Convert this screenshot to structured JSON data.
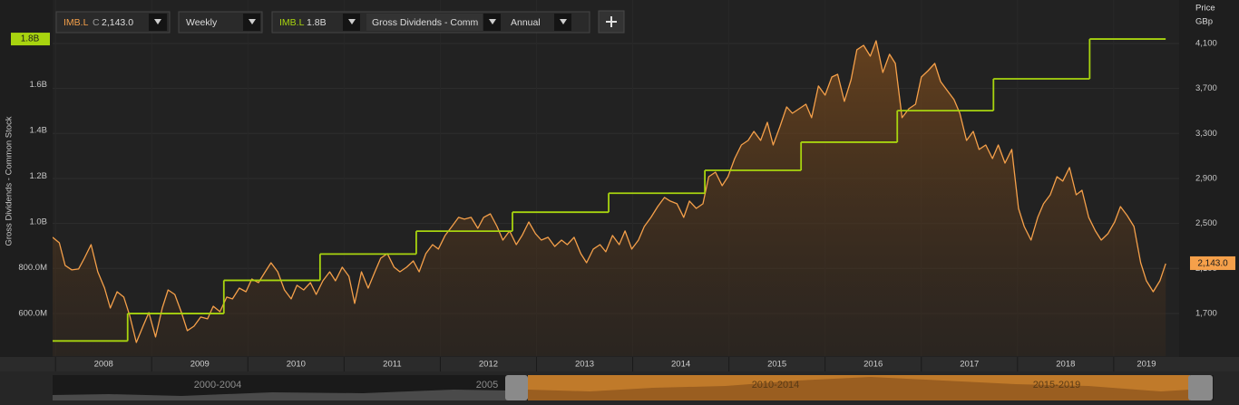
{
  "chart_data": {
    "type": "combo",
    "ylabel": "Gross Dividends - Common Stock",
    "y2label": "Price",
    "y2unit": "GBp",
    "xlim": [
      2007.97,
      2019.68
    ],
    "xticks": [
      2008,
      2009,
      2010,
      2011,
      2012,
      2013,
      2014,
      2015,
      2016,
      2017,
      2018,
      2019
    ],
    "ylim": [
      414,
      1931
    ],
    "yticks": [
      {
        "value": 600,
        "label": "600.0M"
      },
      {
        "value": 800,
        "label": "800.0M"
      },
      {
        "value": 1000,
        "label": "1.0B"
      },
      {
        "value": 1200,
        "label": "1.2B"
      },
      {
        "value": 1400,
        "label": "1.4B"
      },
      {
        "value": 1600,
        "label": "1.6B"
      }
    ],
    "y2lim": [
      1321,
      4406
    ],
    "y2ticks": [
      {
        "value": 1700,
        "label": "1,700"
      },
      {
        "value": 2100,
        "label": "2,100"
      },
      {
        "value": 2500,
        "label": "2,500"
      },
      {
        "value": 2900,
        "label": "2,900"
      },
      {
        "value": 3300,
        "label": "3,300"
      },
      {
        "value": 3700,
        "label": "3,700"
      },
      {
        "value": 4100,
        "label": "4,100"
      }
    ],
    "grid": true,
    "series": [
      {
        "name": "IMB.L",
        "field": "C",
        "frequency": "Weekly",
        "type": "area",
        "axis": "y2",
        "color": "#f5a04a",
        "last_value_label": "2,143.0",
        "x": [
          2007.97,
          2008.04,
          2008.1,
          2008.17,
          2008.24,
          2008.3,
          2008.37,
          2008.44,
          2008.51,
          2008.57,
          2008.64,
          2008.71,
          2008.77,
          2008.84,
          2008.91,
          2008.97,
          2009.04,
          2009.11,
          2009.17,
          2009.24,
          2009.31,
          2009.37,
          2009.44,
          2009.51,
          2009.58,
          2009.64,
          2009.71,
          2009.78,
          2009.84,
          2009.91,
          2009.98,
          2010.04,
          2010.11,
          2010.18,
          2010.24,
          2010.31,
          2010.38,
          2010.45,
          2010.51,
          2010.58,
          2010.65,
          2010.71,
          2010.78,
          2010.85,
          2010.91,
          2010.98,
          2011.05,
          2011.11,
          2011.18,
          2011.25,
          2011.32,
          2011.38,
          2011.45,
          2011.52,
          2011.58,
          2011.65,
          2011.72,
          2011.78,
          2011.85,
          2011.92,
          2011.98,
          2012.05,
          2012.12,
          2012.19,
          2012.25,
          2012.32,
          2012.39,
          2012.45,
          2012.52,
          2012.59,
          2012.65,
          2012.72,
          2012.79,
          2012.85,
          2012.92,
          2012.99,
          2013.05,
          2013.12,
          2013.19,
          2013.26,
          2013.32,
          2013.39,
          2013.46,
          2013.52,
          2013.59,
          2013.66,
          2013.72,
          2013.79,
          2013.86,
          2013.92,
          2013.99,
          2014.06,
          2014.12,
          2014.19,
          2014.26,
          2014.33,
          2014.39,
          2014.46,
          2014.53,
          2014.59,
          2014.66,
          2014.73,
          2014.79,
          2014.86,
          2014.93,
          2014.99,
          2015.06,
          2015.13,
          2015.2,
          2015.26,
          2015.33,
          2015.4,
          2015.46,
          2015.53,
          2015.6,
          2015.66,
          2015.73,
          2015.8,
          2015.86,
          2015.93,
          2016.0,
          2016.07,
          2016.13,
          2016.2,
          2016.27,
          2016.33,
          2016.4,
          2016.47,
          2016.53,
          2016.6,
          2016.67,
          2016.73,
          2016.8,
          2016.87,
          2016.94,
          2017.0,
          2017.07,
          2017.14,
          2017.2,
          2017.27,
          2017.34,
          2017.4,
          2017.47,
          2017.54,
          2017.6,
          2017.67,
          2017.74,
          2017.8,
          2017.87,
          2017.94,
          2018.01,
          2018.07,
          2018.14,
          2018.21,
          2018.27,
          2018.34,
          2018.41,
          2018.47,
          2018.54,
          2018.61,
          2018.67,
          2018.74,
          2018.81,
          2018.87,
          2018.94,
          2019.01,
          2019.07,
          2019.14,
          2019.21,
          2019.28,
          2019.34,
          2019.41,
          2019.48,
          2019.54
        ],
        "values": [
          2377,
          2328,
          2127,
          2087,
          2095,
          2191,
          2312,
          2070,
          1925,
          1748,
          1893,
          1845,
          1684,
          1442,
          1587,
          1708,
          1491,
          1748,
          1909,
          1869,
          1708,
          1547,
          1587,
          1668,
          1652,
          1764,
          1716,
          1845,
          1829,
          1925,
          1893,
          2006,
          1974,
          2070,
          2151,
          2070,
          1909,
          1829,
          1950,
          1909,
          1974,
          1869,
          1990,
          2070,
          1990,
          2111,
          2030,
          1789,
          2070,
          1925,
          2070,
          2191,
          2232,
          2111,
          2070,
          2111,
          2167,
          2070,
          2232,
          2312,
          2272,
          2393,
          2473,
          2554,
          2538,
          2554,
          2457,
          2554,
          2586,
          2473,
          2352,
          2433,
          2312,
          2393,
          2513,
          2409,
          2352,
          2377,
          2296,
          2352,
          2312,
          2377,
          2232,
          2151,
          2272,
          2312,
          2248,
          2393,
          2312,
          2433,
          2272,
          2352,
          2473,
          2554,
          2650,
          2731,
          2699,
          2675,
          2554,
          2699,
          2634,
          2675,
          2916,
          2956,
          2836,
          2916,
          3077,
          3198,
          3238,
          3319,
          3238,
          3399,
          3198,
          3359,
          3536,
          3480,
          3520,
          3560,
          3440,
          3722,
          3641,
          3802,
          3826,
          3585,
          3778,
          4044,
          4084,
          3987,
          4124,
          3842,
          4004,
          3923,
          3440,
          3520,
          3560,
          3802,
          3858,
          3923,
          3762,
          3681,
          3601,
          3480,
          3238,
          3319,
          3158,
          3198,
          3077,
          3198,
          3037,
          3158,
          2634,
          2473,
          2352,
          2554,
          2675,
          2755,
          2916,
          2876,
          2997,
          2755,
          2795,
          2554,
          2433,
          2352,
          2409,
          2513,
          2650,
          2570,
          2473,
          2151,
          1990,
          1893,
          1990,
          2143
        ]
      },
      {
        "name": "IMB.L",
        "field": "Gross Dividends - Comm",
        "frequency": "Annual",
        "type": "step",
        "axis": "y",
        "color": "#a8d40f",
        "last_value_label": "1.8B",
        "x": [
          2007.75,
          2008.75,
          2009.75,
          2010.75,
          2011.75,
          2012.75,
          2013.75,
          2014.75,
          2015.75,
          2016.75,
          2017.75,
          2018.75
        ],
        "values": [
          480,
          600,
          745,
          860,
          960,
          1043,
          1126,
          1226,
          1349,
          1487,
          1626,
          1800
        ]
      }
    ],
    "navigator": {
      "labels": [
        "2000-2004",
        "2005",
        "2010-2014",
        "2015-2019"
      ]
    }
  }
}
